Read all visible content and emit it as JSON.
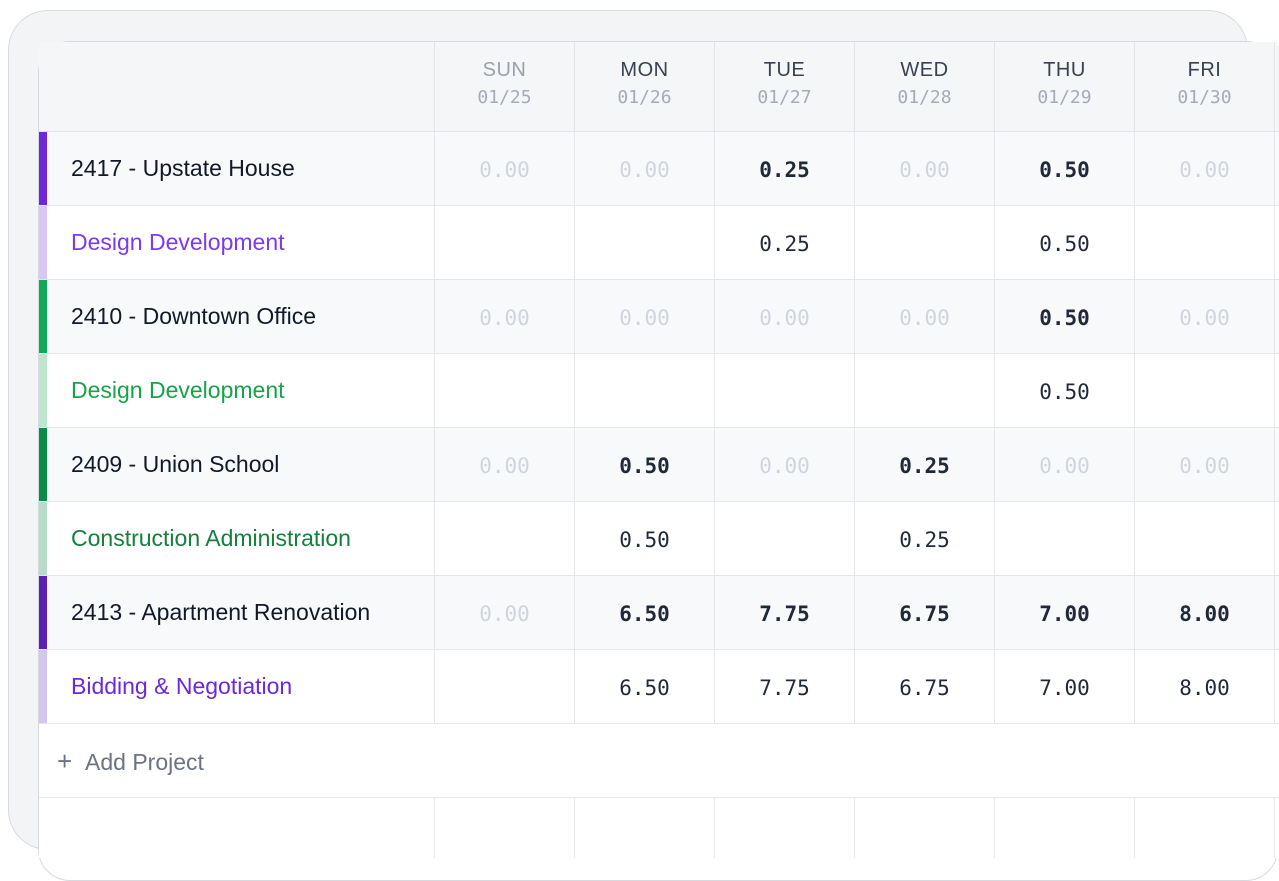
{
  "days": [
    {
      "name": "SUN",
      "date": "01/25",
      "dim": true
    },
    {
      "name": "MON",
      "date": "01/26",
      "dim": false
    },
    {
      "name": "TUE",
      "date": "01/27",
      "dim": false
    },
    {
      "name": "WED",
      "date": "01/28",
      "dim": false
    },
    {
      "name": "THU",
      "date": "01/29",
      "dim": false
    },
    {
      "name": "FRI",
      "date": "01/30",
      "dim": false
    }
  ],
  "rows": [
    {
      "type": "project",
      "label": "2417 - Upstate House",
      "bar_color": "#6d28d9",
      "label_color": "#111827",
      "values": [
        "0.00",
        "0.00",
        "0.25",
        "0.00",
        "0.50",
        "0.00"
      ]
    },
    {
      "type": "phase",
      "label": "Design Development",
      "bar_color": "#d8c8f3",
      "label_color": "#7c3aed",
      "values": [
        "",
        "",
        "0.25",
        "",
        "0.50",
        ""
      ]
    },
    {
      "type": "project",
      "label": "2410 - Downtown Office",
      "bar_color": "#0fa958",
      "label_color": "#111827",
      "values": [
        "0.00",
        "0.00",
        "0.00",
        "0.00",
        "0.50",
        "0.00"
      ]
    },
    {
      "type": "phase",
      "label": "Design Development",
      "bar_color": "#bde6cc",
      "label_color": "#16a34a",
      "values": [
        "",
        "",
        "",
        "",
        "0.50",
        ""
      ]
    },
    {
      "type": "project",
      "label": "2409 - Union School",
      "bar_color": "#0b8a4a",
      "label_color": "#111827",
      "values": [
        "0.00",
        "0.50",
        "0.00",
        "0.25",
        "0.00",
        "0.00"
      ]
    },
    {
      "type": "phase",
      "label": "Construction Administration",
      "bar_color": "#b8dcc7",
      "label_color": "#15803d",
      "values": [
        "",
        "0.50",
        "",
        "0.25",
        "",
        ""
      ]
    },
    {
      "type": "project",
      "label": "2413 - Apartment Renovation",
      "bar_color": "#5b21b6",
      "label_color": "#111827",
      "values": [
        "0.00",
        "6.50",
        "7.75",
        "6.75",
        "7.00",
        "8.00"
      ]
    },
    {
      "type": "phase",
      "label": "Bidding & Negotiation",
      "bar_color": "#d3c6ef",
      "label_color": "#6d28d9",
      "values": [
        "",
        "6.50",
        "7.75",
        "6.75",
        "7.00",
        "8.00"
      ]
    }
  ],
  "add_project": {
    "label": "Add Project",
    "icon": "plus-icon"
  }
}
